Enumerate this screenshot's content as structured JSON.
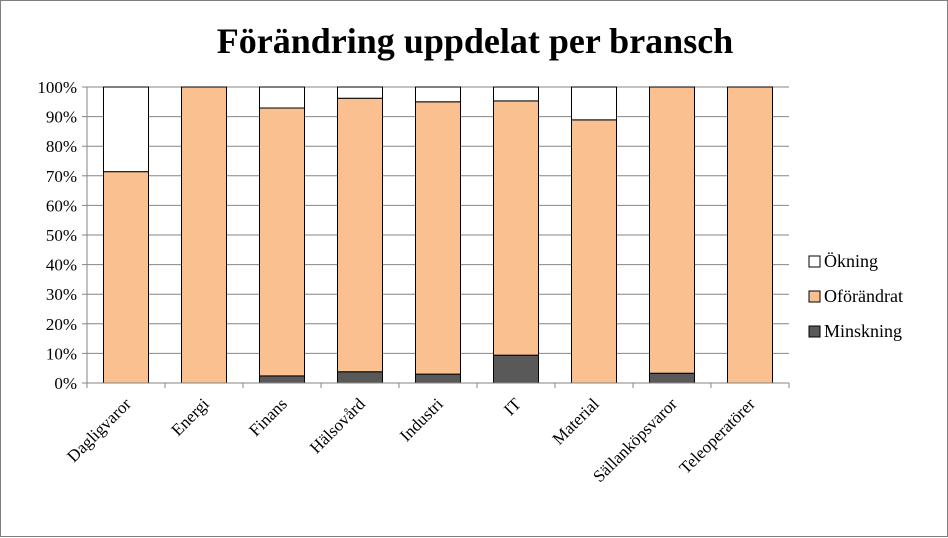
{
  "chart_data": {
    "type": "bar",
    "stacked": true,
    "percent": true,
    "title": "Förändring uppdelat per bransch",
    "categories": [
      "Dagligvaror",
      "Energi",
      "Finans",
      "Hälsovård",
      "Industri",
      "IT",
      "Material",
      "Sällanköpsvaror",
      "Teleoperatörer"
    ],
    "series": [
      {
        "name": "Minskning",
        "color": "#595959",
        "values": [
          0,
          0,
          2.4,
          3.8,
          3.0,
          9.4,
          0,
          3.3,
          0
        ]
      },
      {
        "name": "Oförändrat",
        "color": "#fac090",
        "values": [
          71.4,
          100,
          90.5,
          92.4,
          92.0,
          85.9,
          88.9,
          96.7,
          100
        ]
      },
      {
        "name": "Ökning",
        "color": "#ffffff",
        "values": [
          28.6,
          0,
          7.1,
          3.8,
          5.0,
          4.7,
          11.1,
          0,
          0
        ]
      }
    ],
    "legend_order": [
      "Ökning",
      "Oförändrat",
      "Minskning"
    ],
    "ylim": [
      0,
      100
    ],
    "yticks": [
      "0%",
      "10%",
      "20%",
      "30%",
      "40%",
      "50%",
      "60%",
      "70%",
      "80%",
      "90%",
      "100%"
    ],
    "xlabel": "",
    "ylabel": "",
    "grid": true,
    "legend_position": "right"
  }
}
